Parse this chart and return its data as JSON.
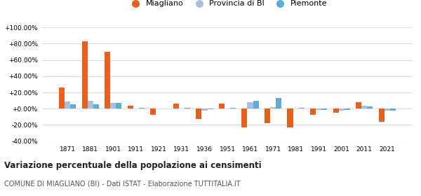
{
  "years": [
    1871,
    1881,
    1901,
    1911,
    1921,
    1931,
    1936,
    1951,
    1961,
    1971,
    1981,
    1991,
    2001,
    2011,
    2021
  ],
  "miagliano": [
    26.0,
    83.0,
    70.0,
    3.5,
    -8.0,
    6.0,
    -13.0,
    6.0,
    -23.0,
    -18.0,
    -23.0,
    -8.0,
    -5.0,
    8.0,
    -16.0
  ],
  "provincia_bi": [
    9.0,
    10.0,
    7.5,
    0.5,
    0.0,
    0.5,
    -2.0,
    0.5,
    8.0,
    2.0,
    0.0,
    -1.5,
    -2.0,
    4.0,
    -2.5
  ],
  "piemonte": [
    5.5,
    5.0,
    7.0,
    1.0,
    0.5,
    1.0,
    -1.0,
    1.0,
    10.0,
    13.0,
    1.0,
    -1.5,
    -1.5,
    2.5,
    -2.0
  ],
  "miagliano_color": "#E8601C",
  "provincia_bi_color": "#AABEDE",
  "piemonte_color": "#5BADD6",
  "background_color": "#ffffff",
  "grid_color": "#dddddd",
  "title": "Variazione percentuale della popolazione ai censimenti",
  "subtitle": "COMUNE DI MIAGLIANO (BI) - Dati ISTAT - Elaborazione TUTTITALIA.IT",
  "legend_labels": [
    "Miagliano",
    "Provincia di BI",
    "Piemonte"
  ],
  "ylim": [
    -40,
    100
  ],
  "yticks": [
    -40,
    -20,
    0,
    20,
    40,
    60,
    80,
    100
  ]
}
